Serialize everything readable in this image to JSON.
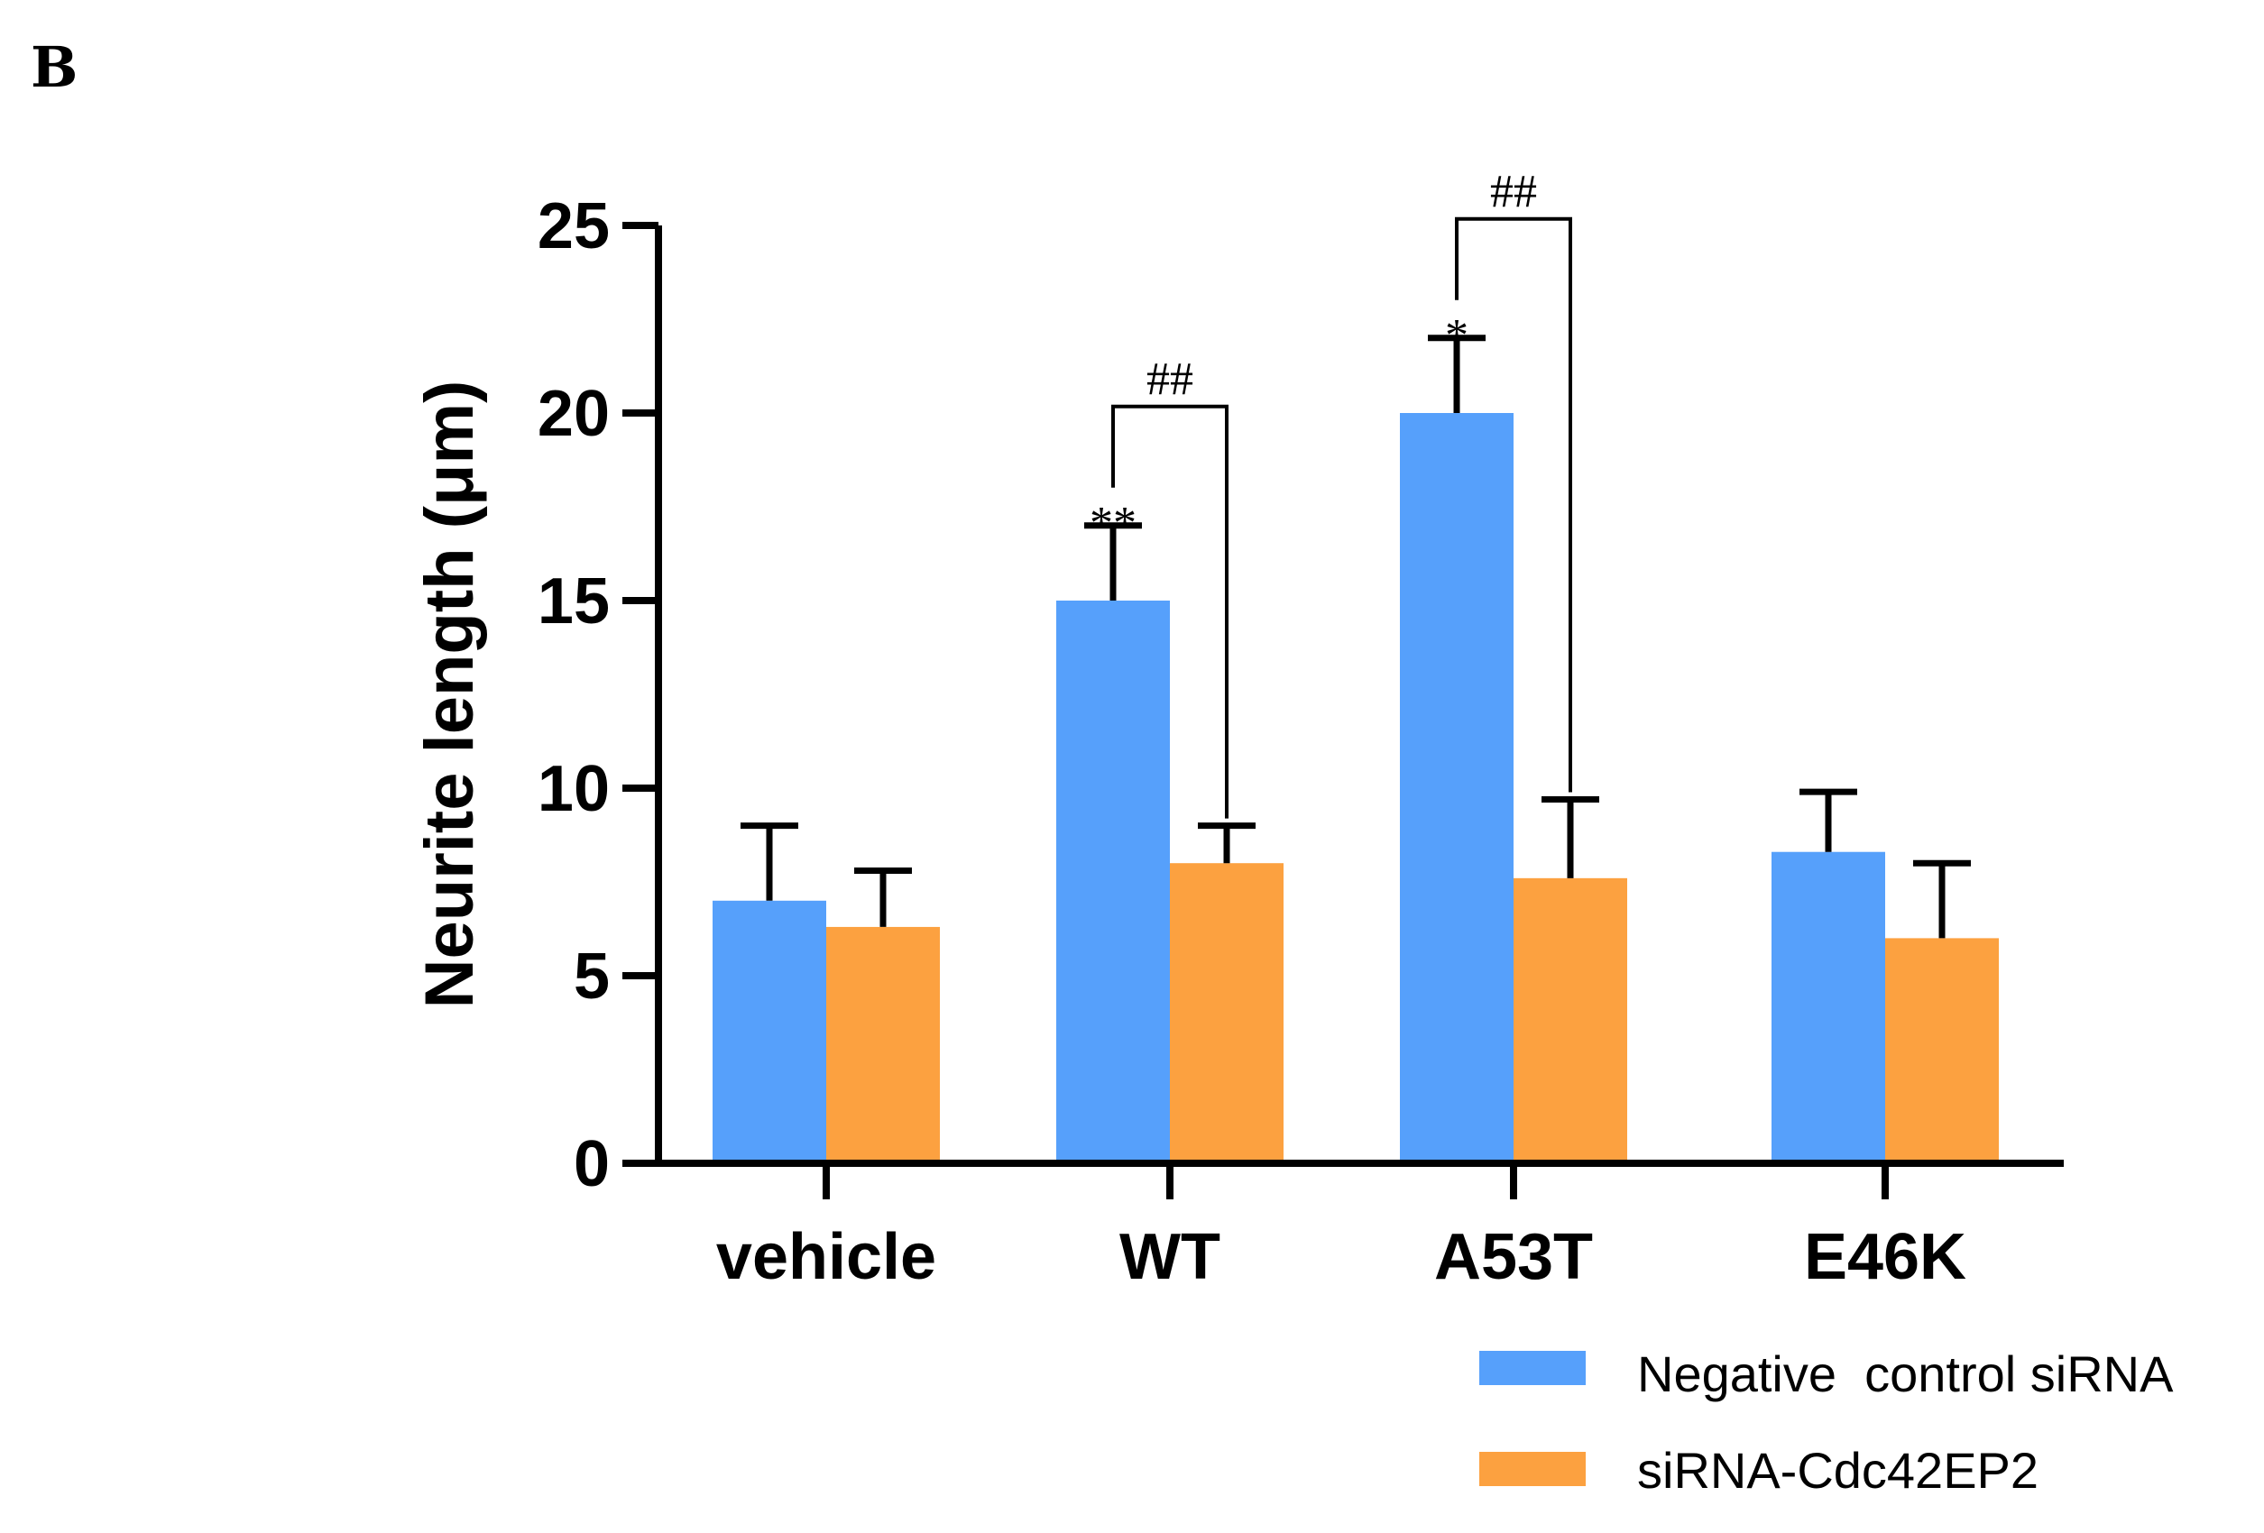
{
  "panel_label": "B",
  "chart_data": {
    "type": "bar",
    "title": "",
    "xlabel": "",
    "ylabel": "Neurite length (μm)",
    "ylim": [
      0,
      25
    ],
    "yticks": [
      0,
      5,
      10,
      15,
      20,
      25
    ],
    "ytick_labels": [
      "0",
      "5",
      "10",
      "15",
      "20",
      "25"
    ],
    "categories": [
      "vehicle",
      "WT",
      "A53T",
      "E46K"
    ],
    "series": [
      {
        "name": "Negative  control siRNA",
        "color": "#56a0fb",
        "values": [
          7.0,
          15.0,
          20.0,
          8.3
        ],
        "errors": [
          2.0,
          2.0,
          2.0,
          1.6
        ]
      },
      {
        "name": "siRNA-Cdc42EP2",
        "color": "#fca140",
        "values": [
          6.3,
          8.0,
          7.6,
          6.0
        ],
        "errors": [
          1.5,
          1.0,
          2.1,
          2.0
        ]
      }
    ],
    "significance": [
      {
        "category_index": 1,
        "marker": "**"
      },
      {
        "category_index": 2,
        "marker": "*"
      }
    ],
    "brackets": [
      {
        "category_index": 1,
        "marker": "##"
      },
      {
        "category_index": 2,
        "marker": "##"
      }
    ],
    "legend_position": "bottom-right"
  }
}
